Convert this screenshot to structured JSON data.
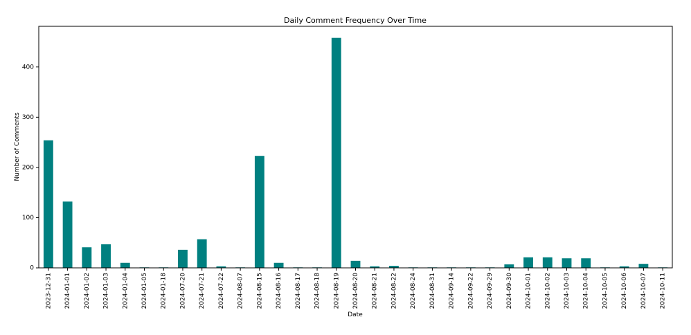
{
  "chart_data": {
    "type": "bar",
    "title": "Daily Comment Frequency Over Time",
    "xlabel": "Date",
    "ylabel": "Number of Comments",
    "categories": [
      "2023-12-31",
      "2024-01-01",
      "2024-01-02",
      "2024-01-03",
      "2024-01-04",
      "2024-01-05",
      "2024-01-18",
      "2024-07-20",
      "2024-07-21",
      "2024-07-22",
      "2024-08-07",
      "2024-08-15",
      "2024-08-16",
      "2024-08-17",
      "2024-08-18",
      "2024-08-19",
      "2024-08-20",
      "2024-08-21",
      "2024-08-22",
      "2024-08-24",
      "2024-08-31",
      "2024-09-14",
      "2024-09-22",
      "2024-09-29",
      "2024-09-30",
      "2024-10-01",
      "2024-10-02",
      "2024-10-03",
      "2024-10-04",
      "2024-10-05",
      "2024-10-06",
      "2024-10-07",
      "2024-10-11"
    ],
    "values": [
      254,
      132,
      41,
      47,
      10,
      1,
      1,
      36,
      57,
      3,
      1,
      223,
      10,
      1,
      1,
      458,
      14,
      3,
      4,
      1,
      1,
      1,
      1,
      1,
      7,
      21,
      21,
      19,
      19,
      1,
      3,
      8,
      1
    ],
    "ylim": [
      0,
      481
    ],
    "yticks": [
      0,
      100,
      200,
      300,
      400
    ],
    "bar_color": "#008080",
    "grid": false,
    "legend": "none"
  }
}
